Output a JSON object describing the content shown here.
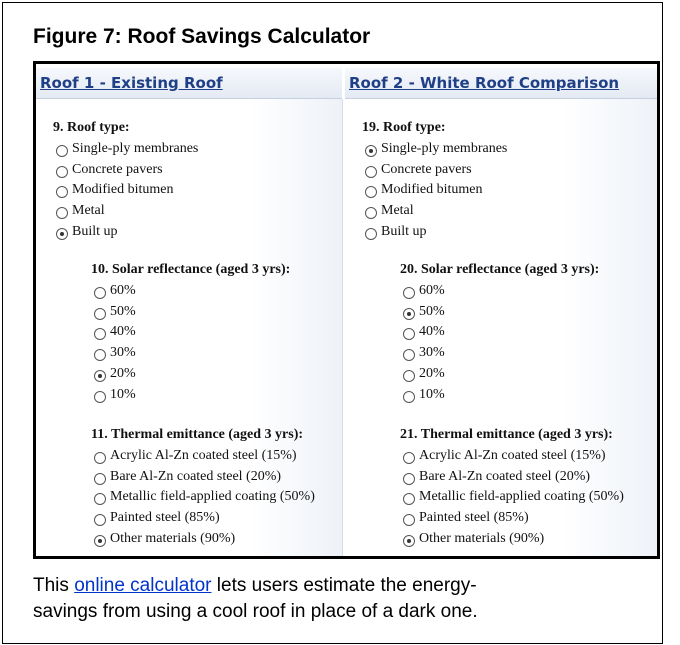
{
  "title": "Figure 7: Roof Savings Calculator",
  "columns": [
    {
      "header": "Roof 1 - Existing Roof",
      "questions": [
        {
          "label": "9. Roof type:",
          "options": [
            "Single-ply membranes",
            "Concrete pavers",
            "Modified bitumen",
            "Metal",
            "Built up"
          ],
          "selected": 4
        },
        {
          "label": "10. Solar reflectance (aged 3 yrs):",
          "options": [
            "60%",
            "50%",
            "40%",
            "30%",
            "20%",
            "10%"
          ],
          "selected": 4
        },
        {
          "label": "11. Thermal emittance (aged 3 yrs):",
          "options": [
            "Acrylic Al-Zn coated steel (15%)",
            "Bare Al-Zn coated steel (20%)",
            "Metallic field-applied coating (50%)",
            "Painted steel (85%)",
            "Other materials (90%)"
          ],
          "selected": 4
        }
      ]
    },
    {
      "header": "Roof 2 - White Roof Comparison",
      "questions": [
        {
          "label": "19. Roof type:",
          "options": [
            "Single-ply membranes",
            "Concrete pavers",
            "Modified bitumen",
            "Metal",
            "Built up"
          ],
          "selected": 0
        },
        {
          "label": "20. Solar reflectance (aged 3 yrs):",
          "options": [
            "60%",
            "50%",
            "40%",
            "30%",
            "20%",
            "10%"
          ],
          "selected": 1
        },
        {
          "label": "21. Thermal emittance (aged 3 yrs):",
          "options": [
            "Acrylic Al-Zn coated steel (15%)",
            "Bare Al-Zn coated steel (20%)",
            "Metallic field-applied coating (50%)",
            "Painted steel (85%)",
            "Other materials (90%)"
          ],
          "selected": 4
        }
      ]
    }
  ],
  "caption": {
    "before": "This ",
    "link": "online calculator",
    "after": " lets users estimate the energy-",
    "line2": "savings from using a cool roof in place of a dark one."
  }
}
